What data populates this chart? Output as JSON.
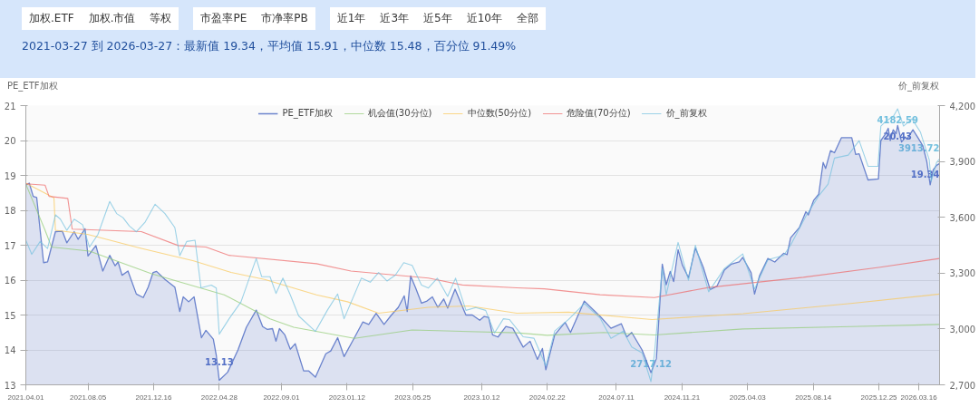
{
  "chart_data": {
    "type": "line",
    "title": "2021-03-27 到 2026-03-27：最新值 19.34，平均值 15.91，中位数 15.48，百分位 91.49%",
    "annotations": [
      "加权.ETF",
      "加权.市值",
      "等权",
      "市盈率PE",
      "市净率PB",
      "近1年",
      "近3年",
      "近5年",
      "近10年",
      "全部"
    ],
    "ylabel": "PE_ETF加权",
    "y2label": "价_前复权",
    "legend": "top",
    "grid": "y",
    "xlim": [
      "2021-04-01",
      "2026-04-27"
    ],
    "xticks": [
      {
        "value": "2021-04-01",
        "label": "2021.04.01"
      },
      {
        "value": "2021-08-05",
        "label": "2021.08.05"
      },
      {
        "value": "2021-12-16",
        "label": "2021.12.16"
      },
      {
        "value": "2022-04-28",
        "label": "2022.04.28"
      },
      {
        "value": "2022-09-01",
        "label": "2022.09.01"
      },
      {
        "value": "2023-01-12",
        "label": "2023.01.12"
      },
      {
        "value": "2023-05-25",
        "label": "2023.05.25"
      },
      {
        "value": "2023-10-12",
        "label": "2023.10.12"
      },
      {
        "value": "2024-02-22",
        "label": "2024.02.22"
      },
      {
        "value": "2024-07-11",
        "label": "2024.07.11"
      },
      {
        "value": "2024-11-21",
        "label": "2024.11.21"
      },
      {
        "value": "2025-04-03",
        "label": "2025.04.03"
      },
      {
        "value": "2025-08-14",
        "label": "2025.08.14"
      },
      {
        "value": "2025-12-25",
        "label": "2025.12.25"
      },
      {
        "value": "2026-03-16",
        "label": "2026.03.16"
      }
    ],
    "ylim": [
      13,
      21
    ],
    "yticks": [
      13,
      14,
      15,
      16,
      17,
      18,
      19,
      20,
      21
    ],
    "y2lim": [
      2700,
      4200
    ],
    "y2ticks": [
      {
        "value": 2700,
        "label": "2,700"
      },
      {
        "value": 3000,
        "label": "3,000"
      },
      {
        "value": 3300,
        "label": "3,300"
      },
      {
        "value": 3600,
        "label": "3,600"
      },
      {
        "value": 3900,
        "label": "3,900"
      },
      {
        "value": 4200,
        "label": "4,200"
      }
    ],
    "series": [
      {
        "name": "PE_ETF加权",
        "type": "area",
        "color": "#5470c6",
        "x": [
          "2021-04-01",
          "2021-04-08",
          "2021-04-16",
          "2021-04-23",
          "2021-05-07",
          "2021-05-15",
          "2021-05-31",
          "2021-06-14",
          "2021-06-23",
          "2021-07-08",
          "2021-07-16",
          "2021-07-30",
          "2021-08-05",
          "2021-08-21",
          "2021-09-04",
          "2021-09-18",
          "2021-09-29",
          "2021-10-05",
          "2021-10-13",
          "2021-10-25",
          "2021-11-11",
          "2021-11-25",
          "2021-12-05",
          "2021-12-15",
          "2021-12-22",
          "2022-01-08",
          "2022-01-28",
          "2022-02-07",
          "2022-02-14",
          "2022-02-25",
          "2022-03-08",
          "2022-03-23",
          "2022-04-01",
          "2022-04-16",
          "2022-04-22",
          "2022-04-28",
          "2022-05-15",
          "2022-06-05",
          "2022-06-22",
          "2022-07-12",
          "2022-07-25",
          "2022-08-03",
          "2022-08-14",
          "2022-08-21",
          "2022-08-28",
          "2022-09-08",
          "2022-09-19",
          "2022-09-29",
          "2022-10-16",
          "2022-10-26",
          "2022-11-09",
          "2022-11-30",
          "2022-12-10",
          "2022-12-24",
          "2023-01-06",
          "2023-01-27",
          "2023-02-13",
          "2023-02-25",
          "2023-03-12",
          "2023-03-28",
          "2023-04-12",
          "2023-04-26",
          "2023-05-08",
          "2023-05-14",
          "2023-05-21",
          "2023-05-31",
          "2023-06-12",
          "2023-06-23",
          "2023-07-04",
          "2023-07-15",
          "2023-07-27",
          "2023-08-04",
          "2023-08-19",
          "2023-09-10",
          "2023-09-23",
          "2023-10-08",
          "2023-10-17",
          "2023-10-26",
          "2023-11-03",
          "2023-11-14",
          "2023-11-30",
          "2023-12-14",
          "2024-01-04",
          "2024-01-18",
          "2024-02-02",
          "2024-02-12",
          "2024-02-19",
          "2024-03-08",
          "2024-03-29",
          "2024-04-09",
          "2024-05-07",
          "2024-06-08",
          "2024-06-30",
          "2024-07-21",
          "2024-08-01",
          "2024-08-11",
          "2024-09-01",
          "2024-09-19",
          "2024-09-30",
          "2024-10-12",
          "2024-10-20",
          "2024-10-28",
          "2024-11-04",
          "2024-11-13",
          "2024-11-22",
          "2024-12-04",
          "2024-12-18",
          "2025-01-03",
          "2025-01-17",
          "2025-01-31",
          "2025-02-15",
          "2025-03-01",
          "2025-03-17",
          "2025-03-24",
          "2025-04-10",
          "2025-04-17",
          "2025-04-27",
          "2025-05-14",
          "2025-05-28",
          "2025-06-15",
          "2025-06-22",
          "2025-06-29",
          "2025-07-17",
          "2025-07-30",
          "2025-08-04",
          "2025-08-15",
          "2025-08-25",
          "2025-09-03",
          "2025-09-08",
          "2025-09-18",
          "2025-09-26",
          "2025-10-10",
          "2025-10-31",
          "2025-11-08",
          "2025-11-15",
          "2025-12-03",
          "2025-12-24",
          "2025-12-29",
          "2026-01-07",
          "2026-01-13",
          "2026-01-17",
          "2026-01-23",
          "2026-01-29",
          "2026-02-01",
          "2026-02-09",
          "2026-02-17",
          "2026-02-20",
          "2026-03-04",
          "2026-03-15",
          "2026-03-24",
          "2026-04-01",
          "2026-04-08",
          "2026-04-14",
          "2026-04-21",
          "2026-04-27"
        ],
        "values": [
          18.72,
          18.78,
          18.4,
          18.37,
          16.5,
          16.52,
          17.39,
          17.4,
          17.07,
          17.39,
          17.17,
          17.47,
          16.69,
          16.99,
          16.26,
          16.71,
          16.41,
          16.52,
          16.14,
          16.26,
          15.6,
          15.5,
          15.8,
          16.22,
          16.25,
          16.02,
          15.8,
          15.1,
          15.52,
          15.38,
          15.52,
          14.35,
          14.56,
          14.31,
          13.85,
          13.13,
          13.36,
          14.0,
          14.65,
          15.14,
          14.67,
          14.59,
          14.61,
          14.25,
          14.61,
          14.43,
          14.02,
          14.18,
          13.4,
          13.4,
          13.22,
          13.89,
          13.97,
          14.35,
          13.81,
          14.35,
          14.8,
          14.73,
          15.05,
          14.73,
          15.0,
          15.22,
          15.55,
          15.1,
          16.12,
          15.78,
          15.34,
          15.4,
          15.52,
          15.22,
          15.46,
          15.2,
          15.74,
          15.0,
          15.0,
          14.85,
          14.96,
          14.93,
          14.43,
          14.37,
          14.67,
          14.62,
          14.08,
          14.25,
          13.73,
          14.04,
          13.43,
          14.43,
          14.79,
          14.5,
          15.4,
          14.96,
          14.62,
          14.75,
          14.37,
          14.5,
          14.0,
          13.35,
          13.75,
          16.46,
          15.87,
          16.25,
          15.96,
          16.87,
          16.42,
          16.07,
          16.92,
          16.37,
          15.73,
          15.83,
          16.29,
          16.46,
          16.52,
          16.65,
          16.21,
          15.6,
          16.12,
          16.62,
          16.52,
          16.77,
          16.73,
          17.21,
          17.51,
          17.96,
          17.87,
          18.29,
          18.46,
          19.37,
          19.2,
          19.71,
          19.65,
          20.08,
          20.08,
          19.6,
          19.62,
          18.87,
          18.9,
          20.0,
          20.18,
          20.35,
          20.0,
          20.31,
          20.2,
          20.43,
          19.96,
          20.1,
          20.04,
          20.31,
          20.06,
          19.85,
          19.41,
          18.73,
          19.16,
          19.29,
          19.34
        ],
        "value_labels": [
          null,
          null,
          null,
          null,
          null,
          null,
          null,
          null,
          null,
          null,
          null,
          null,
          null,
          null,
          null,
          null,
          null,
          null,
          null,
          null,
          null,
          null,
          null,
          null,
          null,
          null,
          null,
          null,
          null,
          null,
          null,
          null,
          null,
          null,
          null,
          "13.13",
          null,
          null,
          null,
          null,
          null,
          null,
          null,
          null,
          null,
          null,
          null,
          null,
          null,
          null,
          null,
          null,
          null,
          null,
          null,
          null,
          null,
          null,
          null,
          null,
          null,
          null,
          null,
          null,
          null,
          null,
          null,
          null,
          null,
          null,
          null,
          null,
          null,
          null,
          null,
          null,
          null,
          null,
          null,
          null,
          null,
          null,
          null,
          null,
          null,
          null,
          null,
          null,
          null,
          null,
          null,
          null,
          null,
          null,
          null,
          null,
          null,
          null,
          null,
          null,
          null,
          null,
          null,
          null,
          null,
          null,
          null,
          null,
          null,
          null,
          null,
          null,
          null,
          null,
          null,
          null,
          null,
          null,
          null,
          null,
          null,
          null,
          null,
          null,
          null,
          null,
          null,
          null,
          null,
          null,
          null,
          null,
          null,
          null,
          null,
          null,
          null,
          null,
          null,
          null,
          null,
          null,
          null,
          "20.43",
          null,
          null,
          null,
          null,
          null,
          null,
          null,
          null,
          null,
          null,
          "19.34"
        ]
      },
      {
        "name": "机会值(30分位)",
        "color": "#91cc75",
        "x": [
          "2021-04-01",
          "2021-05-10",
          "2021-05-23",
          "2021-08-08",
          "2021-12-12",
          "2022-05-08",
          "2022-08-09",
          "2022-09-26",
          "2023-01-27",
          "2023-05-24",
          "2023-12-22",
          "2024-02-22",
          "2024-06-15",
          "2024-09-26",
          "2025-03-25",
          "2025-10-29",
          "2026-04-27"
        ],
        "values": [
          18.75,
          17.43,
          16.95,
          16.83,
          16.18,
          15.58,
          14.89,
          14.65,
          14.33,
          14.57,
          14.49,
          14.42,
          14.5,
          14.43,
          14.6,
          14.67,
          14.73
        ]
      },
      {
        "name": "中位数(50分位)",
        "color": "#fac858",
        "x": [
          "2021-04-01",
          "2021-05-28",
          "2021-05-31",
          "2021-08-04",
          "2021-11-21",
          "2022-03-07",
          "2022-05-22",
          "2022-07-29",
          "2022-11-11",
          "2023-01-13",
          "2023-03-17",
          "2023-06-26",
          "2023-09-16",
          "2023-12-22",
          "2024-04-05",
          "2024-09-21",
          "2025-03-25",
          "2025-10-29",
          "2026-04-27"
        ],
        "values": [
          18.78,
          18.36,
          17.43,
          17.31,
          16.91,
          16.55,
          16.22,
          16.02,
          15.58,
          15.38,
          15.05,
          15.22,
          15.26,
          15.05,
          15.08,
          14.87,
          15.04,
          15.33,
          15.6
        ]
      },
      {
        "name": "危险值(70分位)",
        "color": "#ee6666",
        "x": [
          "2021-04-01",
          "2021-05-10",
          "2021-05-18",
          "2021-06-25",
          "2021-07-04",
          "2021-11-21",
          "2022-02-04",
          "2022-04-01",
          "2022-05-18",
          "2022-11-11",
          "2023-01-20",
          "2023-06-26",
          "2023-09-03",
          "2023-12-22",
          "2024-02-16",
          "2024-06-08",
          "2024-09-26",
          "2025-01-14",
          "2025-07-25",
          "2025-12-28",
          "2026-04-27"
        ],
        "values": [
          18.76,
          18.72,
          18.4,
          18.34,
          17.46,
          17.39,
          16.99,
          16.95,
          16.71,
          16.47,
          16.26,
          16.06,
          15.86,
          15.78,
          15.75,
          15.58,
          15.5,
          15.79,
          16.08,
          16.37,
          16.62
        ]
      },
      {
        "name": "价_前复权",
        "axis": "y2",
        "color": "#73c0de",
        "x": [
          "2021-04-01",
          "2021-04-13",
          "2021-04-30",
          "2021-05-15",
          "2021-05-31",
          "2021-06-10",
          "2021-06-23",
          "2021-07-08",
          "2021-07-25",
          "2021-08-08",
          "2021-08-25",
          "2021-09-18",
          "2021-10-02",
          "2021-10-15",
          "2021-10-28",
          "2021-11-11",
          "2021-11-29",
          "2021-12-19",
          "2022-01-08",
          "2022-01-28",
          "2022-02-07",
          "2022-02-21",
          "2022-03-10",
          "2022-03-22",
          "2022-04-12",
          "2022-04-22",
          "2022-04-28",
          "2022-05-18",
          "2022-06-11",
          "2022-07-12",
          "2022-07-23",
          "2022-08-09",
          "2022-08-21",
          "2022-09-04",
          "2022-09-19",
          "2022-10-06",
          "2022-11-09",
          "2022-12-03",
          "2022-12-24",
          "2023-01-06",
          "2023-02-10",
          "2023-02-28",
          "2023-03-17",
          "2023-04-03",
          "2023-04-20",
          "2023-05-07",
          "2023-05-24",
          "2023-06-12",
          "2023-06-26",
          "2023-07-14",
          "2023-08-04",
          "2023-08-20",
          "2023-09-10",
          "2023-09-30",
          "2023-10-20",
          "2023-11-07",
          "2023-11-25",
          "2023-12-07",
          "2024-01-04",
          "2024-01-26",
          "2024-02-19",
          "2024-03-08",
          "2024-04-05",
          "2024-05-07",
          "2024-06-08",
          "2024-06-30",
          "2024-07-25",
          "2024-08-11",
          "2024-09-01",
          "2024-09-19",
          "2024-09-26",
          "2024-10-12",
          "2024-10-20",
          "2024-11-13",
          "2024-12-04",
          "2024-12-18",
          "2025-01-14",
          "2025-02-15",
          "2025-03-24",
          "2025-04-17",
          "2025-05-14",
          "2025-06-15",
          "2025-06-29",
          "2025-07-30",
          "2025-08-25",
          "2025-09-13",
          "2025-09-26",
          "2025-10-24",
          "2025-11-15",
          "2025-12-03",
          "2025-12-23",
          "2025-12-29",
          "2026-01-07",
          "2026-01-24",
          "2026-02-01",
          "2026-02-13",
          "2026-03-02",
          "2026-03-19",
          "2026-04-06",
          "2026-04-10",
          "2026-04-21",
          "2026-04-27"
        ],
        "values": [
          3477,
          3401,
          3470,
          3432,
          3613,
          3590,
          3530,
          3590,
          3560,
          3440,
          3507,
          3685,
          3620,
          3598,
          3553,
          3522,
          3575,
          3670,
          3620,
          3545,
          3394,
          3470,
          3477,
          3221,
          3236,
          3220,
          2972,
          3055,
          3145,
          3379,
          3281,
          3281,
          3191,
          3273,
          3183,
          3070,
          2987,
          3100,
          3188,
          3055,
          3273,
          3251,
          3303,
          3258,
          3289,
          3356,
          3342,
          3236,
          3220,
          3273,
          3175,
          3273,
          3100,
          3115,
          3100,
          2979,
          3055,
          3051,
          2958,
          2950,
          2802,
          2989,
          3051,
          3137,
          3059,
          2950,
          2989,
          2903,
          2872,
          2717.12,
          2864,
          3325,
          3184,
          3465,
          3262,
          3450,
          3200,
          3325,
          3403,
          3215,
          3372,
          3395,
          3450,
          3606,
          3715,
          3778,
          3918,
          3934,
          4012,
          3874,
          3874,
          4090,
          4113,
          4145,
          4182.59,
          4090,
          4129,
          4059,
          3910,
          3793,
          3895,
          3913.72
        ],
        "value_labels": [
          null,
          null,
          null,
          null,
          null,
          null,
          null,
          null,
          null,
          null,
          null,
          null,
          null,
          null,
          null,
          null,
          null,
          null,
          null,
          null,
          null,
          null,
          null,
          null,
          null,
          null,
          null,
          null,
          null,
          null,
          null,
          null,
          null,
          null,
          null,
          null,
          null,
          null,
          null,
          null,
          null,
          null,
          null,
          null,
          null,
          null,
          null,
          null,
          null,
          null,
          null,
          null,
          null,
          null,
          null,
          null,
          null,
          null,
          null,
          null,
          null,
          null,
          null,
          null,
          null,
          null,
          null,
          null,
          null,
          "2717.12",
          null,
          null,
          null,
          null,
          null,
          null,
          null,
          null,
          null,
          null,
          null,
          null,
          null,
          null,
          null,
          null,
          null,
          null,
          null,
          null,
          null,
          null,
          null,
          null,
          "4182.59",
          null,
          null,
          null,
          null,
          null,
          null,
          "3913.72"
        ]
      }
    ]
  }
}
